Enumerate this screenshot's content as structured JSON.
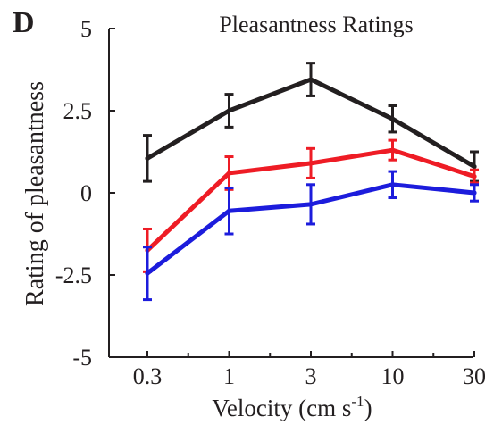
{
  "panel_label": "D",
  "chart_data": {
    "type": "line",
    "title": "Pleasantness Ratings",
    "xlabel": "Velocity (cm s",
    "xlabel_superscript": "-1",
    "xlabel_suffix": ")",
    "ylabel": "Rating of pleasantness",
    "categories": [
      "0.3",
      "1",
      "3",
      "10",
      "30"
    ],
    "y_ticks": [
      "5",
      "2.5",
      "0",
      "-2.5",
      "-5"
    ],
    "ylim": [
      -5,
      5
    ],
    "grid": false,
    "legend": "none",
    "series": [
      {
        "color": "#231f20",
        "values": [
          1.05,
          2.5,
          3.45,
          2.25,
          0.8
        ],
        "error": [
          0.7,
          0.5,
          0.5,
          0.4,
          0.45
        ]
      },
      {
        "color": "#ee1c25",
        "values": [
          -1.75,
          0.6,
          0.9,
          1.3,
          0.5
        ],
        "error": [
          0.65,
          0.5,
          0.45,
          0.3,
          0.2
        ]
      },
      {
        "color": "#1c1cdc",
        "values": [
          -2.45,
          -0.55,
          -0.35,
          0.25,
          0.0
        ],
        "error": [
          0.8,
          0.7,
          0.6,
          0.4,
          0.25
        ]
      }
    ]
  }
}
